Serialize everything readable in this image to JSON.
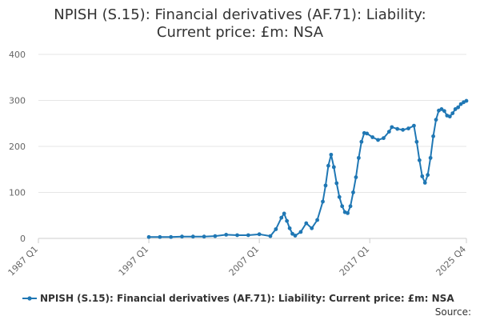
{
  "chart_data": {
    "type": "line",
    "title_lines": [
      "NPISH (S.15): Financial derivatives (AF.71): Liability:",
      "Current price: £m: NSA"
    ],
    "xlabel": "",
    "ylabel": "",
    "ylim": [
      0,
      400
    ],
    "y_ticks": [
      "0",
      "100",
      "200",
      "300",
      "400"
    ],
    "x_range": [
      "1987 Q1",
      "2025 Q4"
    ],
    "x_ticks": [
      "1987 Q1",
      "1997 Q1",
      "2007 Q1",
      "2017 Q1",
      "2025 Q4"
    ],
    "grid": "horizontal",
    "legend_position": "bottom",
    "series": [
      {
        "name": "NPISH (S.15): Financial derivatives (AF.71): Liability: Current price: £m: NSA",
        "color": "#1f77b4",
        "points": [
          [
            "1997 Q1",
            3
          ],
          [
            "1998 Q1",
            3
          ],
          [
            "1999 Q1",
            3
          ],
          [
            "2000 Q1",
            4
          ],
          [
            "2001 Q1",
            4
          ],
          [
            "2002 Q1",
            4
          ],
          [
            "2003 Q1",
            5
          ],
          [
            "2004 Q1",
            8
          ],
          [
            "2005 Q1",
            7
          ],
          [
            "2006 Q1",
            7
          ],
          [
            "2007 Q1",
            9
          ],
          [
            "2008 Q1",
            5
          ],
          [
            "2008 Q3",
            20
          ],
          [
            "2009 Q1",
            45
          ],
          [
            "2009 Q2",
            54
          ],
          [
            "2009 Q3",
            38
          ],
          [
            "2009 Q4",
            22
          ],
          [
            "2010 Q1",
            10
          ],
          [
            "2010 Q2",
            6
          ],
          [
            "2010 Q4",
            14
          ],
          [
            "2011 Q2",
            33
          ],
          [
            "2011 Q4",
            22
          ],
          [
            "2012 Q2",
            40
          ],
          [
            "2012 Q4",
            80
          ],
          [
            "2013 Q1",
            115
          ],
          [
            "2013 Q2",
            158
          ],
          [
            "2013 Q3",
            182
          ],
          [
            "2013 Q4",
            155
          ],
          [
            "2014 Q1",
            120
          ],
          [
            "2014 Q2",
            90
          ],
          [
            "2014 Q3",
            70
          ],
          [
            "2014 Q4",
            57
          ],
          [
            "2015 Q1",
            55
          ],
          [
            "2015 Q2",
            70
          ],
          [
            "2015 Q3",
            100
          ],
          [
            "2015 Q4",
            133
          ],
          [
            "2016 Q1",
            175
          ],
          [
            "2016 Q2",
            210
          ],
          [
            "2016 Q3",
            229
          ],
          [
            "2016 Q4",
            228
          ],
          [
            "2017 Q2",
            220
          ],
          [
            "2017 Q4",
            214
          ],
          [
            "2018 Q2",
            218
          ],
          [
            "2018 Q4",
            232
          ],
          [
            "2019 Q1",
            242
          ],
          [
            "2019 Q3",
            238
          ],
          [
            "2020 Q1",
            236
          ],
          [
            "2020 Q3",
            239
          ],
          [
            "2021 Q1",
            245
          ],
          [
            "2021 Q2",
            210
          ],
          [
            "2021 Q3",
            170
          ],
          [
            "2021 Q4",
            135
          ],
          [
            "2022 Q1",
            121
          ],
          [
            "2022 Q2",
            138
          ],
          [
            "2022 Q3",
            175
          ],
          [
            "2022 Q4",
            222
          ],
          [
            "2023 Q1",
            258
          ],
          [
            "2023 Q2",
            278
          ],
          [
            "2023 Q3",
            281
          ],
          [
            "2023 Q4",
            277
          ],
          [
            "2024 Q1",
            267
          ],
          [
            "2024 Q2",
            265
          ],
          [
            "2024 Q3",
            272
          ],
          [
            "2024 Q4",
            281
          ],
          [
            "2025 Q1",
            285
          ],
          [
            "2025 Q2",
            292
          ],
          [
            "2025 Q3",
            296
          ],
          [
            "2025 Q4",
            299
          ]
        ]
      }
    ]
  },
  "source_label": "Source:"
}
